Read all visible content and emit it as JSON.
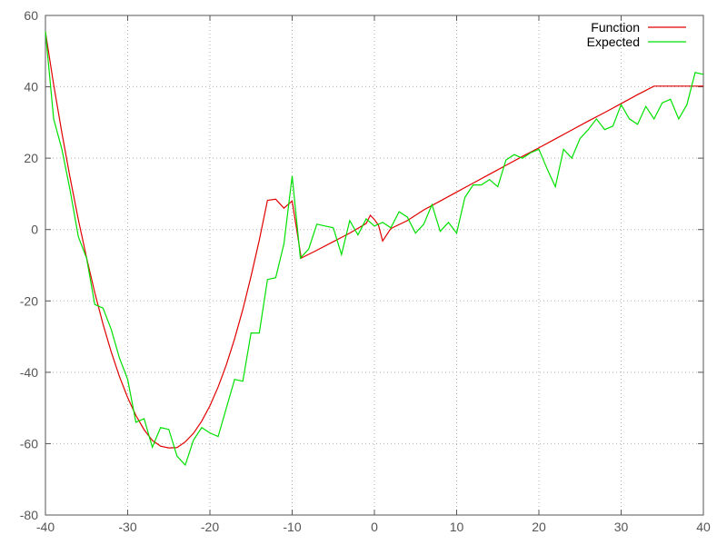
{
  "chart_data": {
    "type": "line",
    "title": "",
    "xlabel": "",
    "ylabel": "",
    "xlim": [
      -40,
      40
    ],
    "ylim": [
      -80,
      60
    ],
    "x_ticks": [
      -40,
      -30,
      -20,
      -10,
      0,
      10,
      20,
      30,
      40
    ],
    "y_ticks": [
      -80,
      -60,
      -40,
      -20,
      0,
      20,
      40,
      60
    ],
    "grid": true,
    "legend_position": "top-right",
    "series": [
      {
        "name": "Function",
        "color": "#e00000",
        "x": [
          -40,
          -39,
          -38,
          -37,
          -36,
          -35,
          -34,
          -33,
          -32,
          -31,
          -30,
          -29,
          -28,
          -27,
          -26,
          -25,
          -24,
          -23,
          -22,
          -21,
          -20,
          -19,
          -18,
          -17,
          -16,
          -15,
          -14,
          -13,
          -12,
          -11,
          -10,
          -8.9,
          -7,
          -5,
          -3,
          -1,
          -0.5,
          0,
          0.5,
          1,
          2,
          4,
          6,
          8,
          10,
          12,
          14,
          16,
          18,
          20,
          22,
          24,
          26,
          28,
          30,
          32,
          34,
          36,
          38,
          40
        ],
        "y": [
          55.4,
          40.6,
          27.1,
          14.5,
          2.8,
          -7.9,
          -17.7,
          -26.5,
          -34.3,
          -41.2,
          -47.1,
          -52.1,
          -56.1,
          -59.1,
          -60.7,
          -61.2,
          -61.1,
          -59.5,
          -57.1,
          -53.7,
          -49.4,
          -44.1,
          -37.9,
          -30.6,
          -22.4,
          -13.1,
          -3.0,
          8.2,
          8.5,
          6.0,
          8.0,
          -8.0,
          -5.8,
          -3.4,
          -1.0,
          1.7,
          4.0,
          2.8,
          1.2,
          -3.2,
          0.3,
          2.5,
          5.5,
          8.0,
          10.5,
          13.0,
          15.5,
          18.0,
          20.5,
          22.9,
          25.4,
          27.9,
          30.4,
          32.8,
          35.3,
          37.8,
          40.2,
          40.2,
          40.2,
          40.2
        ]
      },
      {
        "name": "Expected",
        "color": "#00e000",
        "x": [
          -40,
          -39,
          -38,
          -37,
          -36,
          -35,
          -34,
          -33,
          -32,
          -31,
          -30,
          -29,
          -28,
          -27,
          -26,
          -25,
          -24,
          -23,
          -22,
          -21,
          -20,
          -19,
          -18,
          -17,
          -16,
          -15,
          -14,
          -13,
          -12,
          -11,
          -10,
          -9,
          -8,
          -7,
          -6,
          -5,
          -4,
          -3,
          -2,
          -1,
          0,
          1,
          2,
          3,
          4,
          5,
          6,
          7,
          8,
          9,
          10,
          11,
          12,
          13,
          14,
          15,
          16,
          17,
          18,
          19,
          20,
          21,
          22,
          23,
          24,
          25,
          26,
          27,
          28,
          29,
          30,
          31,
          32,
          33,
          34,
          35,
          36,
          37,
          38,
          39,
          40
        ],
        "y": [
          55.5,
          31.0,
          22.5,
          11.0,
          -2.0,
          -8.0,
          -21.0,
          -22.0,
          -28.0,
          -36.0,
          -42.0,
          -54.0,
          -53.0,
          -61.0,
          -55.5,
          -56.0,
          -63.5,
          -66.0,
          -59.0,
          -55.5,
          -57.0,
          -58.0,
          -50.0,
          -42.0,
          -42.5,
          -29.0,
          -29.0,
          -14.0,
          -13.5,
          -4.0,
          15.0,
          -8.0,
          -5.5,
          1.5,
          1.0,
          0.5,
          -7.0,
          2.5,
          -1.5,
          3.0,
          1.0,
          2.0,
          0.5,
          5.0,
          3.5,
          -1.0,
          1.5,
          7.0,
          -0.5,
          2.0,
          -1.0,
          9.0,
          12.5,
          12.5,
          14.0,
          12.0,
          19.5,
          21.0,
          20.0,
          21.5,
          22.5,
          17.0,
          12.0,
          22.5,
          20.0,
          25.5,
          28.0,
          31.0,
          28.0,
          29.0,
          35.0,
          31.0,
          29.5,
          34.5,
          31.0,
          35.5,
          36.5,
          31.0,
          35.0,
          44.0,
          43.5
        ]
      }
    ]
  }
}
